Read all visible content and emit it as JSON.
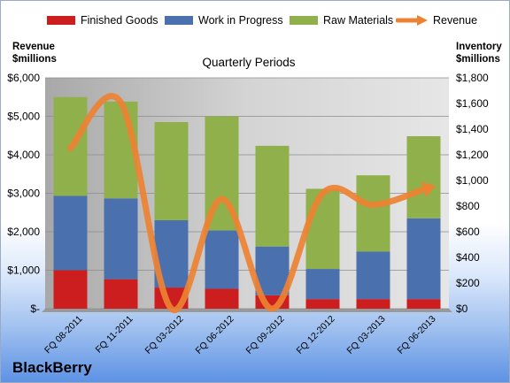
{
  "chart_data": {
    "type": "bar",
    "subtype": "stacked-bar-with-line",
    "title": "Quarterly Periods",
    "brand": "BlackBerry",
    "categories": [
      "FQ 08-2011",
      "FQ 11-2011",
      "FQ 03-2012",
      "FQ 06-2012",
      "FQ 09-2012",
      "FQ 12-2012",
      "FQ 03-2013",
      "FQ 06-2013"
    ],
    "series": [
      {
        "name": "Finished Goods",
        "axis": "right",
        "color": "#cc1e1e",
        "values": [
          300,
          230,
          165,
          155,
          105,
          75,
          75,
          75
        ]
      },
      {
        "name": "Work in Progress",
        "axis": "right",
        "color": "#4a70ad",
        "values": [
          580,
          630,
          525,
          455,
          380,
          235,
          370,
          630
        ]
      },
      {
        "name": "Raw Materials",
        "axis": "right",
        "color": "#8fb04b",
        "values": [
          770,
          755,
          765,
          890,
          785,
          625,
          595,
          640
        ]
      },
      {
        "name": "Revenue",
        "axis": "left",
        "type": "line",
        "color": "#ee8233",
        "values": [
          4170,
          5360,
          0,
          2850,
          0,
          3000,
          2700,
          3100
        ]
      }
    ],
    "left_axis": {
      "label_line1": "Revenue",
      "label_line2": "$millions",
      "range": [
        0,
        6000
      ],
      "ticks": [
        "$-",
        "$1,000",
        "$2,000",
        "$3,000",
        "$4,000",
        "$5,000",
        "$6,000"
      ]
    },
    "right_axis": {
      "label_line1": "Inventory",
      "label_line2": "$millions",
      "range": [
        0,
        1800
      ],
      "ticks": [
        "$0",
        "$200",
        "$400",
        "$600",
        "$800",
        "$1,000",
        "$1,200",
        "$1,400",
        "$1,600",
        "$1,800"
      ]
    },
    "grid": true,
    "legend_position": "top"
  },
  "colors": {
    "plot_background": "#c0c0c0",
    "gridline": "#8c8c8c"
  }
}
